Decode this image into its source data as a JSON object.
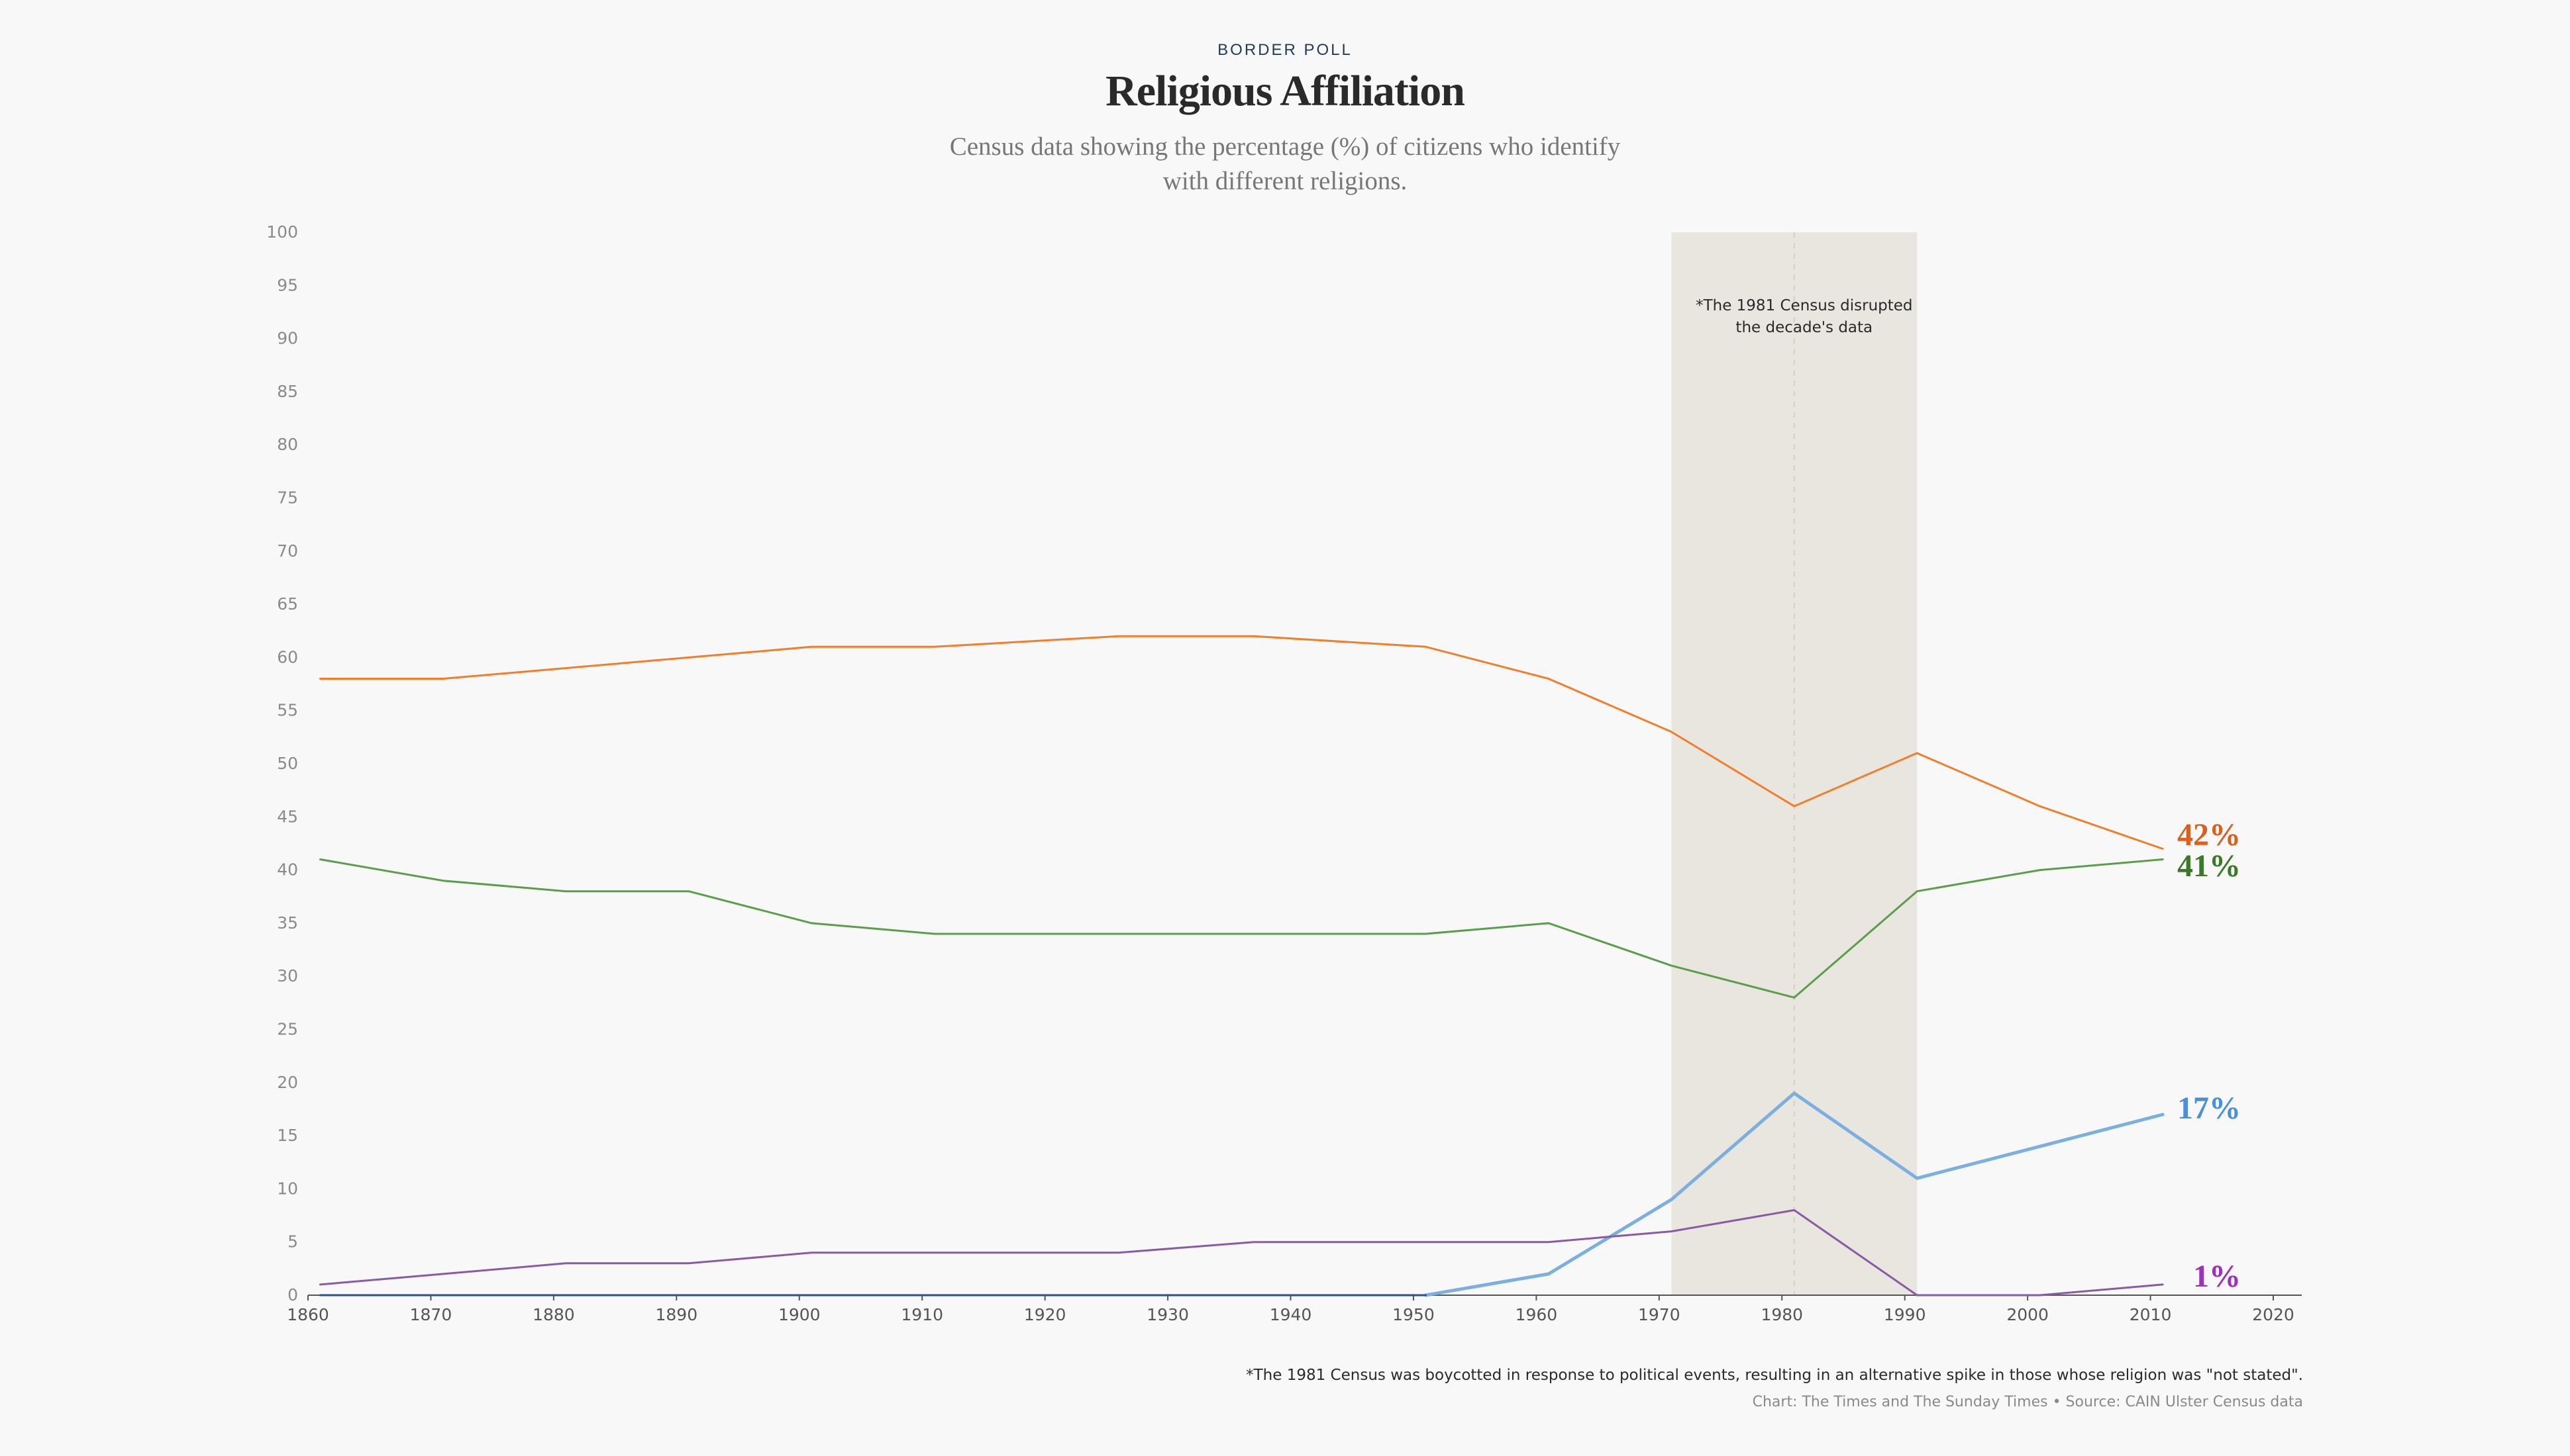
{
  "header": {
    "eyebrow": "BORDER POLL",
    "title": "Religious Affiliation",
    "subtitle": "Census data showing the percentage (%) of citizens who identify with different religions."
  },
  "chart_data": {
    "type": "line",
    "title": "Religious Affiliation",
    "subtitle": "Census data showing the percentage (%) of citizens who identify with different religions.",
    "xlabel": "",
    "ylabel": "",
    "xlim": [
      1860,
      2022
    ],
    "ylim": [
      0,
      100
    ],
    "x_ticks": [
      1860,
      1870,
      1880,
      1890,
      1900,
      1910,
      1920,
      1930,
      1940,
      1950,
      1960,
      1970,
      1980,
      1990,
      2000,
      2010,
      2020
    ],
    "y_ticks": [
      0,
      5,
      10,
      15,
      20,
      25,
      30,
      35,
      40,
      45,
      50,
      55,
      60,
      65,
      70,
      75,
      80,
      85,
      90,
      95,
      100
    ],
    "grid": false,
    "highlight_band": {
      "x_start": 1971,
      "x_end": 1991,
      "marker_x": 1981,
      "annotation": "*The 1981 Census disrupted the decade's data"
    },
    "series": [
      {
        "color": "#f07f2c",
        "label_color": "#d9611e",
        "stroke": 3,
        "end_label": "42%",
        "points": [
          [
            1861,
            58
          ],
          [
            1871,
            58
          ],
          [
            1881,
            59
          ],
          [
            1891,
            60
          ],
          [
            1901,
            61
          ],
          [
            1911,
            61
          ],
          [
            1926,
            62
          ],
          [
            1937,
            62
          ],
          [
            1951,
            61
          ],
          [
            1961,
            58
          ],
          [
            1971,
            53
          ],
          [
            1981,
            46
          ],
          [
            1991,
            51
          ],
          [
            2001,
            46
          ],
          [
            2011,
            42
          ]
        ]
      },
      {
        "color": "#5a9e4a",
        "label_color": "#3c7a2a",
        "stroke": 3,
        "end_label": "41%",
        "points": [
          [
            1861,
            41
          ],
          [
            1871,
            39
          ],
          [
            1881,
            38
          ],
          [
            1891,
            38
          ],
          [
            1901,
            35
          ],
          [
            1911,
            34
          ],
          [
            1926,
            34
          ],
          [
            1937,
            34
          ],
          [
            1951,
            34
          ],
          [
            1961,
            35
          ],
          [
            1971,
            31
          ],
          [
            1981,
            28
          ],
          [
            1991,
            38
          ],
          [
            2001,
            40
          ],
          [
            2011,
            41
          ]
        ]
      },
      {
        "color": "#7aafe0",
        "label_color": "#4a90d9",
        "stroke": 5,
        "end_label": "17%",
        "points": [
          [
            1951,
            0
          ],
          [
            1961,
            2
          ],
          [
            1971,
            9
          ],
          [
            1981,
            19
          ],
          [
            1991,
            11
          ],
          [
            2001,
            14
          ],
          [
            2011,
            17
          ]
        ]
      },
      {
        "color": "#8a5aa5",
        "label_color": "#9a33b8",
        "stroke": 3,
        "end_label": "1%",
        "points": [
          [
            1861,
            1
          ],
          [
            1871,
            2
          ],
          [
            1881,
            3
          ],
          [
            1891,
            3
          ],
          [
            1901,
            4
          ],
          [
            1911,
            4
          ],
          [
            1926,
            4
          ],
          [
            1937,
            5
          ],
          [
            1951,
            5
          ],
          [
            1961,
            5
          ],
          [
            1971,
            6
          ],
          [
            1981,
            8
          ],
          [
            1991,
            0
          ],
          [
            2001,
            0
          ],
          [
            2011,
            1
          ]
        ]
      },
      {
        "color": "#2f4f8a",
        "stroke": 3,
        "end_label": "",
        "points": [
          [
            1861,
            0
          ],
          [
            1951,
            0
          ]
        ]
      }
    ]
  },
  "footer": {
    "footnote": "*The 1981 Census was boycotted in response to political events, resulting in an alternative spike in those whose religion was \"not stated\".",
    "credit": "Chart: The Times and The Sunday Times • Source: CAIN Ulster Census data"
  }
}
